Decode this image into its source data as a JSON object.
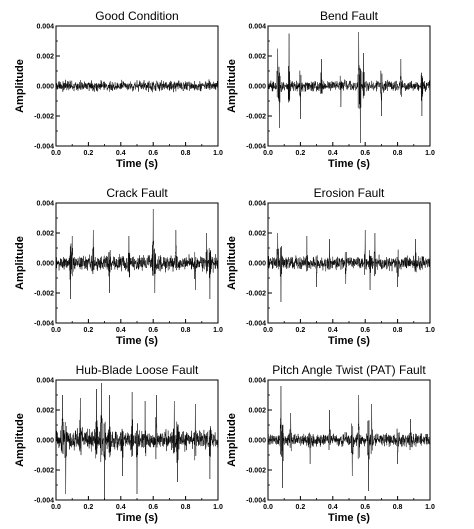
{
  "chart_data": [
    {
      "type": "line",
      "title": "Good Condition",
      "xlabel": "Time (s)",
      "ylabel": "Amplitude",
      "xlim": [
        0.0,
        1.0
      ],
      "ylim": [
        -0.004,
        0.004
      ],
      "xticks": [
        "0.0",
        "0.2",
        "0.4",
        "0.6",
        "0.8",
        "1.0"
      ],
      "yticks": [
        "0.004",
        "0.002",
        "0.000",
        "-0.002",
        "-0.004"
      ],
      "signal": {
        "noise_amplitude": 0.0005,
        "spikes": []
      }
    },
    {
      "type": "line",
      "title": "Bend Fault",
      "xlabel": "Time (s)",
      "ylabel": "Amplitude",
      "xlim": [
        0.0,
        1.0
      ],
      "ylim": [
        -0.004,
        0.004
      ],
      "xticks": [
        "0.0",
        "0.2",
        "0.4",
        "0.6",
        "0.8",
        "1.0"
      ],
      "yticks": [
        "0.004",
        "0.002",
        "0.000",
        "-0.002",
        "-0.004"
      ],
      "signal": {
        "noise_amplitude": 0.0005,
        "spikes": [
          {
            "t": 0.06,
            "amp": 0.0025
          },
          {
            "t": 0.07,
            "amp": -0.0028
          },
          {
            "t": 0.13,
            "amp": 0.0035
          },
          {
            "t": 0.2,
            "amp": -0.0022
          },
          {
            "t": 0.33,
            "amp": 0.0018
          },
          {
            "t": 0.45,
            "amp": -0.0014
          },
          {
            "t": 0.56,
            "amp": 0.0036
          },
          {
            "t": 0.57,
            "amp": -0.0038
          },
          {
            "t": 0.59,
            "amp": 0.0022
          },
          {
            "t": 0.7,
            "amp": -0.002
          },
          {
            "t": 0.82,
            "amp": 0.0018
          },
          {
            "t": 0.95,
            "amp": -0.002
          }
        ]
      }
    },
    {
      "type": "line",
      "title": "Crack Fault",
      "xlabel": "Time (s)",
      "ylabel": "Amplitude",
      "xlim": [
        0.0,
        1.0
      ],
      "ylim": [
        -0.004,
        0.004
      ],
      "xticks": [
        "0.0",
        "0.2",
        "0.4",
        "0.6",
        "0.8",
        "1.0"
      ],
      "yticks": [
        "0.004",
        "0.002",
        "0.000",
        "-0.002",
        "-0.004"
      ],
      "signal": {
        "noise_amplitude": 0.0007,
        "spikes": [
          {
            "t": 0.09,
            "amp": -0.0024
          },
          {
            "t": 0.1,
            "amp": 0.0018
          },
          {
            "t": 0.23,
            "amp": 0.0022
          },
          {
            "t": 0.33,
            "amp": -0.002
          },
          {
            "t": 0.45,
            "amp": 0.0018
          },
          {
            "t": 0.6,
            "amp": 0.0036
          },
          {
            "t": 0.61,
            "amp": -0.002
          },
          {
            "t": 0.74,
            "amp": 0.0022
          },
          {
            "t": 0.86,
            "amp": -0.0018
          },
          {
            "t": 0.93,
            "amp": 0.002
          },
          {
            "t": 0.95,
            "amp": -0.0024
          }
        ]
      }
    },
    {
      "type": "line",
      "title": "Erosion Fault",
      "xlabel": "Time (s)",
      "ylabel": "Amplitude",
      "xlim": [
        0.0,
        1.0
      ],
      "ylim": [
        -0.004,
        0.004
      ],
      "xticks": [
        "0.0",
        "0.2",
        "0.4",
        "0.6",
        "0.8",
        "1.0"
      ],
      "yticks": [
        "0.004",
        "0.002",
        "0.000",
        "-0.002",
        "-0.004"
      ],
      "signal": {
        "noise_amplitude": 0.0006,
        "spikes": [
          {
            "t": 0.06,
            "amp": 0.002
          },
          {
            "t": 0.08,
            "amp": -0.0026
          },
          {
            "t": 0.24,
            "amp": 0.0018
          },
          {
            "t": 0.3,
            "amp": -0.0016
          },
          {
            "t": 0.38,
            "amp": 0.0016
          },
          {
            "t": 0.48,
            "amp": -0.0014
          },
          {
            "t": 0.6,
            "amp": 0.0022
          },
          {
            "t": 0.63,
            "amp": -0.0018
          },
          {
            "t": 0.66,
            "amp": 0.002
          },
          {
            "t": 0.8,
            "amp": -0.0016
          },
          {
            "t": 0.91,
            "amp": 0.0016
          }
        ]
      }
    },
    {
      "type": "line",
      "title": "Hub-Blade Loose Fault",
      "xlabel": "Time (s)",
      "ylabel": "Amplitude",
      "xlim": [
        0.0,
        1.0
      ],
      "ylim": [
        -0.004,
        0.004
      ],
      "xticks": [
        "0.0",
        "0.2",
        "0.4",
        "0.6",
        "0.8",
        "1.0"
      ],
      "yticks": [
        "0.004",
        "0.002",
        "0.000",
        "-0.002",
        "-0.004"
      ],
      "signal": {
        "noise_amplitude": 0.0009,
        "spikes": [
          {
            "t": 0.04,
            "amp": 0.003
          },
          {
            "t": 0.06,
            "amp": -0.0036
          },
          {
            "t": 0.15,
            "amp": 0.0028
          },
          {
            "t": 0.25,
            "amp": 0.0034
          },
          {
            "t": 0.28,
            "amp": 0.0038
          },
          {
            "t": 0.3,
            "amp": -0.004
          },
          {
            "t": 0.33,
            "amp": 0.003
          },
          {
            "t": 0.41,
            "amp": -0.0024
          },
          {
            "t": 0.47,
            "amp": 0.0032
          },
          {
            "t": 0.5,
            "amp": -0.0036
          },
          {
            "t": 0.55,
            "amp": 0.0026
          },
          {
            "t": 0.62,
            "amp": 0.003
          },
          {
            "t": 0.73,
            "amp": 0.0026
          },
          {
            "t": 0.75,
            "amp": -0.0028
          },
          {
            "t": 0.86,
            "amp": 0.0024
          },
          {
            "t": 0.95,
            "amp": -0.0026
          }
        ]
      }
    },
    {
      "type": "line",
      "title": "Pitch Angle Twist (PAT) Fault",
      "xlabel": "Time (s)",
      "ylabel": "Amplitude",
      "xlim": [
        0.0,
        1.0
      ],
      "ylim": [
        -0.004,
        0.004
      ],
      "xticks": [
        "0.0",
        "0.2",
        "0.4",
        "0.6",
        "0.8",
        "1.0"
      ],
      "yticks": [
        "0.004",
        "0.002",
        "0.000",
        "-0.002",
        "-0.004"
      ],
      "signal": {
        "noise_amplitude": 0.0006,
        "spikes": [
          {
            "t": 0.08,
            "amp": 0.0036
          },
          {
            "t": 0.09,
            "amp": -0.0032
          },
          {
            "t": 0.14,
            "amp": 0.0018
          },
          {
            "t": 0.26,
            "amp": -0.0016
          },
          {
            "t": 0.38,
            "amp": 0.002
          },
          {
            "t": 0.52,
            "amp": -0.0024
          },
          {
            "t": 0.56,
            "amp": 0.003
          },
          {
            "t": 0.62,
            "amp": -0.0034
          },
          {
            "t": 0.64,
            "amp": 0.0024
          },
          {
            "t": 0.8,
            "amp": -0.0016
          },
          {
            "t": 0.88,
            "amp": 0.0014
          }
        ]
      }
    }
  ]
}
